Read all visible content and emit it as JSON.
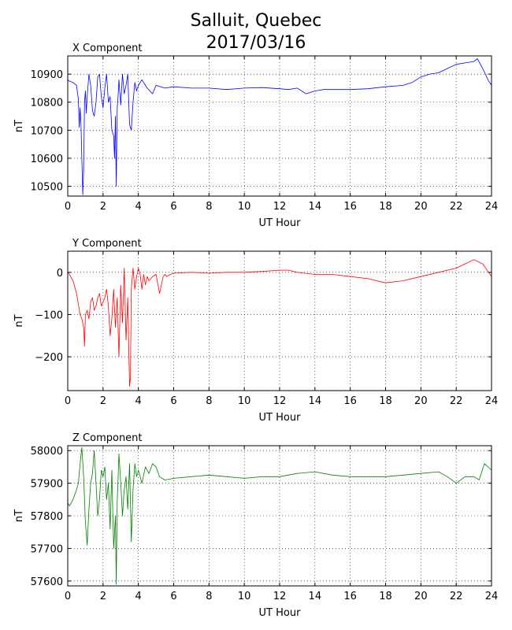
{
  "title_line1": "Salluit, Quebec",
  "title_line2": "2017/03/16",
  "chart_data": [
    {
      "type": "line",
      "title": "X Component",
      "xlabel": "UT Hour",
      "ylabel": "nT",
      "xlim": [
        0,
        24
      ],
      "ylim": [
        10465,
        10965
      ],
      "xticks": [
        0,
        2,
        4,
        6,
        8,
        10,
        12,
        14,
        16,
        18,
        20,
        22,
        24
      ],
      "yticks": [
        10500,
        10600,
        10700,
        10800,
        10900
      ],
      "grid": true,
      "color": "#0000ff",
      "series": [
        {
          "x": [
            0,
            0.1,
            0.3,
            0.5,
            0.6,
            0.65,
            0.7,
            0.75,
            0.8,
            0.85,
            0.9,
            0.95,
            1.0,
            1.05,
            1.1,
            1.2,
            1.3,
            1.4,
            1.5,
            1.6,
            1.7,
            1.8,
            1.9,
            2.0,
            2.1,
            2.2,
            2.3,
            2.4,
            2.5,
            2.6,
            2.65,
            2.7,
            2.75,
            2.8,
            2.85,
            2.9,
            3.0,
            3.1,
            3.2,
            3.3,
            3.4,
            3.5,
            3.6,
            3.7,
            3.8,
            3.9,
            4.0,
            4.2,
            4.5,
            4.8,
            5.0,
            5.5,
            6,
            7,
            8,
            9,
            10,
            11,
            12,
            12.5,
            13,
            13.5,
            14,
            14.5,
            15,
            16,
            17,
            18,
            19,
            19.5,
            20,
            20.5,
            21,
            21.5,
            22,
            22.5,
            23,
            23.2,
            23.5,
            23.8,
            24
          ],
          "y": [
            10880,
            10875,
            10870,
            10860,
            10810,
            10710,
            10780,
            10720,
            10600,
            10470,
            10560,
            10800,
            10840,
            10760,
            10820,
            10900,
            10860,
            10770,
            10750,
            10800,
            10890,
            10900,
            10820,
            10780,
            10850,
            10900,
            10800,
            10820,
            10700,
            10680,
            10600,
            10750,
            10500,
            10780,
            10820,
            10880,
            10790,
            10900,
            10830,
            10860,
            10900,
            10720,
            10700,
            10800,
            10870,
            10840,
            10860,
            10880,
            10850,
            10830,
            10860,
            10850,
            10855,
            10850,
            10850,
            10845,
            10850,
            10852,
            10848,
            10845,
            10850,
            10830,
            10840,
            10845,
            10845,
            10845,
            10848,
            10855,
            10860,
            10870,
            10890,
            10900,
            10905,
            10920,
            10935,
            10940,
            10945,
            10955,
            10920,
            10880,
            10860
          ]
        }
      ]
    },
    {
      "type": "line",
      "title": "Y Component",
      "xlabel": "UT Hour",
      "ylabel": "nT",
      "xlim": [
        0,
        24
      ],
      "ylim": [
        -280,
        50
      ],
      "xticks": [
        0,
        2,
        4,
        6,
        8,
        10,
        12,
        14,
        16,
        18,
        20,
        22,
        24
      ],
      "yticks": [
        -200,
        -100,
        0
      ],
      "grid": true,
      "color": "#ff0000",
      "series": [
        {
          "x": [
            0,
            0.1,
            0.3,
            0.5,
            0.7,
            0.8,
            0.9,
            0.95,
            1.0,
            1.1,
            1.2,
            1.3,
            1.4,
            1.5,
            1.6,
            1.7,
            1.8,
            1.9,
            2.0,
            2.1,
            2.2,
            2.3,
            2.4,
            2.5,
            2.6,
            2.7,
            2.8,
            2.9,
            3.0,
            3.1,
            3.2,
            3.3,
            3.4,
            3.5,
            3.55,
            3.6,
            3.7,
            3.8,
            3.9,
            4.0,
            4.1,
            4.2,
            4.3,
            4.4,
            4.5,
            4.6,
            4.8,
            5.0,
            5.2,
            5.4,
            5.5,
            5.6,
            5.8,
            6,
            7,
            8,
            9,
            10,
            11,
            12,
            12.5,
            13,
            14,
            15,
            16,
            17,
            18,
            19,
            20,
            21,
            22,
            22.5,
            23,
            23.5,
            24
          ],
          "y": [
            0,
            -5,
            -20,
            -50,
            -100,
            -110,
            -130,
            -175,
            -100,
            -90,
            -110,
            -70,
            -60,
            -90,
            -80,
            -60,
            -50,
            -80,
            -70,
            -60,
            -40,
            -80,
            -150,
            -110,
            -40,
            -130,
            -60,
            -200,
            -30,
            -120,
            10,
            -160,
            -60,
            -270,
            -250,
            -40,
            10,
            -40,
            -10,
            10,
            -5,
            -40,
            -5,
            -30,
            -10,
            -20,
            -10,
            -5,
            -50,
            -10,
            -5,
            -10,
            -5,
            -2,
            0,
            -2,
            0,
            0,
            2,
            5,
            5,
            0,
            -5,
            -5,
            -10,
            -15,
            -25,
            -20,
            -10,
            0,
            10,
            20,
            30,
            20,
            -10
          ]
        }
      ]
    },
    {
      "type": "line",
      "title": "Z Component",
      "xlabel": "UT Hour",
      "ylabel": "nT",
      "xlim": [
        0,
        24
      ],
      "ylim": [
        57585,
        58015
      ],
      "xticks": [
        0,
        2,
        4,
        6,
        8,
        10,
        12,
        14,
        16,
        18,
        20,
        22,
        24
      ],
      "yticks": [
        57600,
        57700,
        57800,
        57900,
        58000
      ],
      "grid": true,
      "color": "#008000",
      "series": [
        {
          "x": [
            0,
            0.1,
            0.3,
            0.5,
            0.6,
            0.7,
            0.8,
            0.9,
            1.0,
            1.1,
            1.2,
            1.3,
            1.4,
            1.5,
            1.6,
            1.7,
            1.8,
            1.9,
            2.0,
            2.1,
            2.2,
            2.3,
            2.4,
            2.5,
            2.6,
            2.7,
            2.75,
            2.8,
            2.9,
            3.0,
            3.1,
            3.2,
            3.3,
            3.4,
            3.5,
            3.6,
            3.7,
            3.8,
            3.9,
            4.0,
            4.2,
            4.4,
            4.6,
            4.8,
            5.0,
            5.2,
            5.5,
            6,
            7,
            8,
            9,
            10,
            11,
            12,
            13,
            14,
            15,
            16,
            17,
            18,
            19,
            20,
            21,
            21.5,
            22,
            22.5,
            23,
            23.3,
            23.6,
            24
          ],
          "y": [
            57840,
            57830,
            57850,
            57880,
            57900,
            57960,
            58010,
            57920,
            57780,
            57710,
            57820,
            57900,
            57930,
            58000,
            57900,
            57800,
            57850,
            57940,
            57920,
            57950,
            57850,
            57900,
            57760,
            57940,
            57700,
            57800,
            57590,
            57840,
            57990,
            57900,
            57800,
            57880,
            57920,
            57820,
            57960,
            57720,
            57880,
            57960,
            57920,
            57940,
            57900,
            57950,
            57930,
            57960,
            57950,
            57920,
            57910,
            57915,
            57920,
            57925,
            57920,
            57915,
            57920,
            57920,
            57930,
            57935,
            57925,
            57920,
            57920,
            57920,
            57925,
            57930,
            57935,
            57920,
            57900,
            57920,
            57920,
            57910,
            57960,
            57940
          ]
        }
      ]
    }
  ]
}
